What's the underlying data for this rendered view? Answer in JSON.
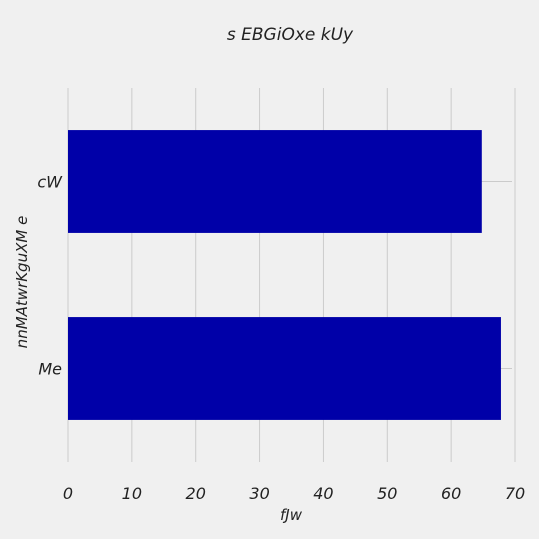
{
  "chart_data": {
    "type": "bar",
    "orientation": "horizontal",
    "title": "s EBGiOxe  kUy",
    "xlabel": "fJw",
    "ylabel": "nnMAtwrKguXM e",
    "categories": [
      "Me",
      "cW"
    ],
    "values": [
      67.8,
      64.8
    ],
    "xlim": [
      0,
      70
    ],
    "xticks": [
      "0",
      "10",
      "20",
      "30",
      "40",
      "50",
      "60",
      "70"
    ],
    "grid": true,
    "legend": "none",
    "colors": {
      "bar": "#0000a8",
      "background": "#f0f0f0",
      "grid": "#cbcbcb"
    }
  }
}
